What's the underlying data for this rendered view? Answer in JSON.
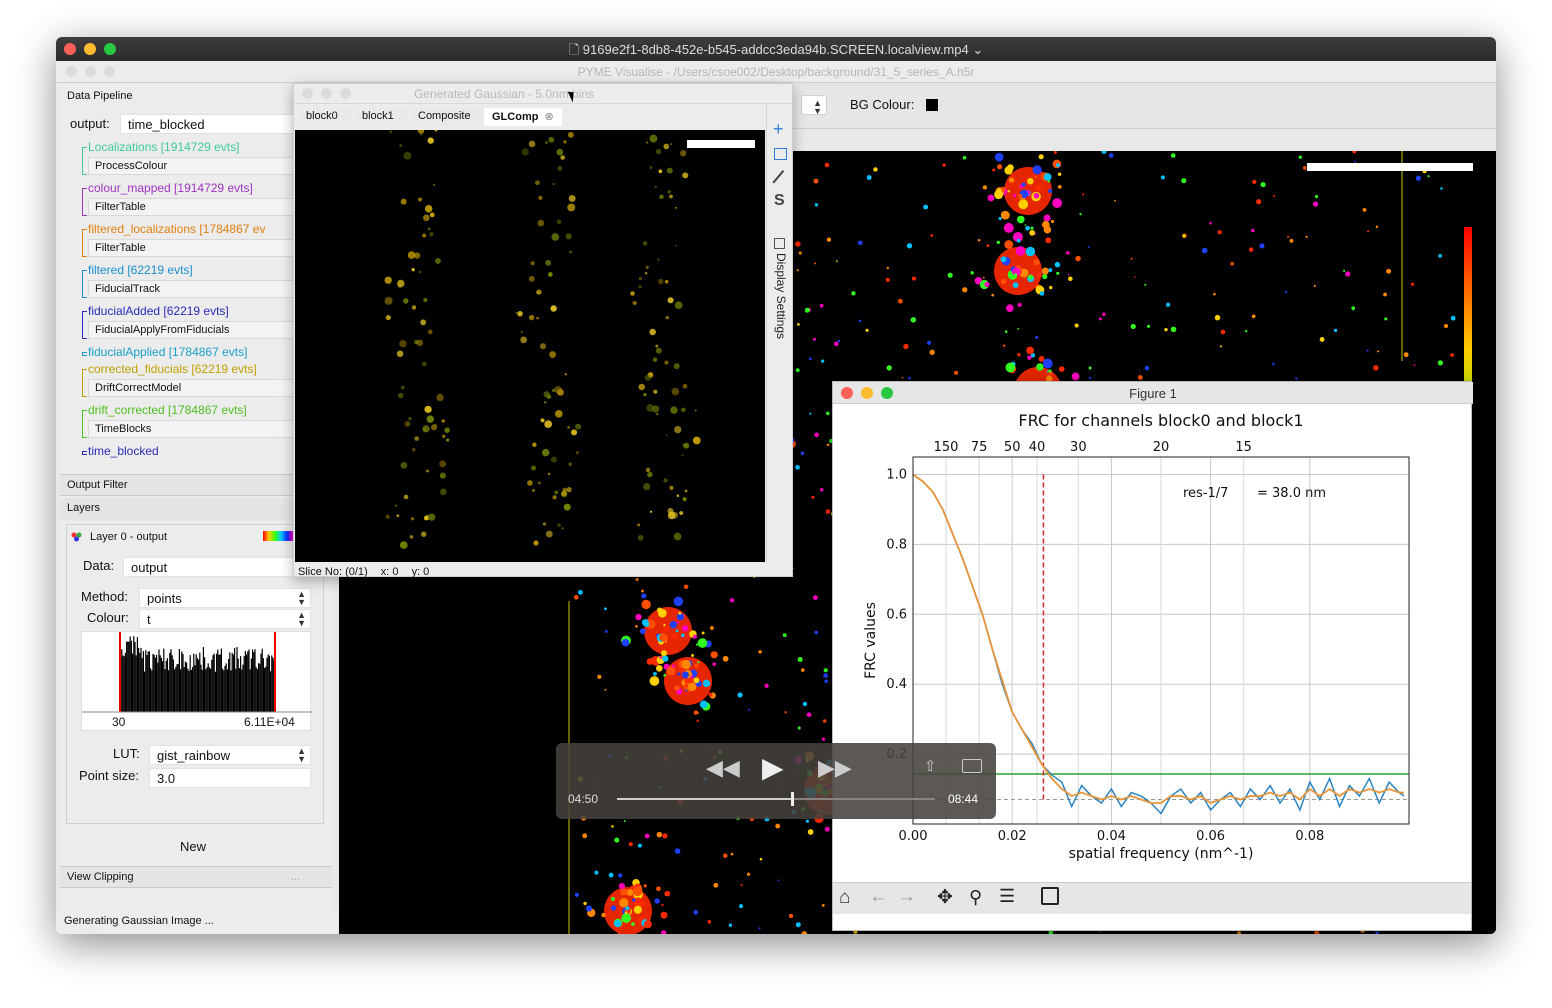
{
  "player": {
    "title": "9169e2f1-8db8-452e-b545-addcc3eda94b.SCREEN.localview.mp4",
    "title_chevron": "⌄",
    "controls": {
      "current_time": "04:50",
      "total_time": "08:44",
      "progress_fraction": 0.55
    }
  },
  "app": {
    "title": "PYME Visualise - /Users/csoe002/Desktop/background/31_5_series_A.h5r",
    "bg_colour_label": "BG Colour:"
  },
  "pipeline": {
    "header": "Data Pipeline",
    "output_label": "output:",
    "output_value": "time_blocked",
    "nodes": [
      {
        "label": "Localizations [1914729 evts]",
        "color": "#3fc9a0",
        "module": "ProcessColour"
      },
      {
        "label": "colour_mapped [1914729 evts]",
        "color": "#a035c0",
        "module": "FilterTable"
      },
      {
        "label": "filtered_localizations [1784867 ev",
        "color": "#e08010",
        "module": "FilterTable"
      },
      {
        "label": "filtered [62219 evts]",
        "color": "#1a8fd0",
        "module": "FiducialTrack"
      },
      {
        "label": "fiducialAdded [62219 evts]",
        "color": "#2a2ab8",
        "module": "FiducialApplyFromFiducials"
      },
      {
        "label": "fiducialApplied [1784867 evts]",
        "color": "#1aa0c8",
        "module": null
      },
      {
        "label": "corrected_fiducials [62219 evts]",
        "color": "#c0a000",
        "module": "DriftCorrectModel"
      },
      {
        "label": "drift_corrected [1784867 evts]",
        "color": "#50c020",
        "module": "TimeBlocks"
      },
      {
        "label": "time_blocked",
        "color": "#2a2ab8",
        "module": null
      }
    ]
  },
  "output_filter": {
    "header": "Output Filter"
  },
  "layers": {
    "header": "Layers",
    "layer_title": "Layer 0 - output",
    "data_label": "Data:",
    "data_value": "output",
    "method_label": "Method:",
    "method_value": "points",
    "colour_label": "Colour:",
    "colour_value": "t",
    "hist_min": "30",
    "hist_max": "6.11E+04",
    "lut_label": "LUT:",
    "lut_value": "gist_rainbow",
    "point_size_label": "Point size:",
    "point_size_value": "3.0",
    "new_button": "New"
  },
  "view_clipping": {
    "header": "View Clipping",
    "dots": "..."
  },
  "status_bar": "Generating Gaussian Image ...",
  "gauss_window": {
    "title": "Generated Gaussian - 5.0nm bins",
    "tabs": [
      "block0",
      "block1",
      "Composite",
      "GLComp"
    ],
    "active_tab": "GLComp",
    "status": {
      "slice": "Slice No: (0/1)",
      "x": "x: 0",
      "y": "y: 0"
    },
    "side_label": "Display Settings"
  },
  "figure": {
    "window_title": "Figure 1",
    "chart_data": {
      "type": "line",
      "title": "FRC for channels block0 and block1",
      "xlabel": "spatial frequency (nm^-1)",
      "ylabel": "FRC values",
      "xlim": [
        0.0,
        0.1
      ],
      "ylim": [
        0.0,
        1.05
      ],
      "x_ticks": [
        "0.00",
        "0.02",
        "0.04",
        "0.06",
        "0.08"
      ],
      "x_tick_values": [
        0.0,
        0.02,
        0.04,
        0.06,
        0.08
      ],
      "y_ticks": [
        "0.2",
        "0.4",
        "0.6",
        "0.8",
        "1.0"
      ],
      "y_tick_values": [
        0.2,
        0.4,
        0.6,
        0.8,
        1.0
      ],
      "top_axis_ticks": [
        "150",
        "75",
        "50",
        "40",
        "30",
        "20",
        "15"
      ],
      "top_axis_values": [
        150,
        75,
        50,
        40,
        30,
        20,
        15
      ],
      "threshold_y": 0.143,
      "resolution_x": 0.0263,
      "annotation_label": "res-1/7",
      "annotation_value": "= 38.0 nm",
      "series": [
        {
          "color": "#2b84c0",
          "x": [
            0.0,
            0.002,
            0.004,
            0.006,
            0.008,
            0.01,
            0.012,
            0.014,
            0.016,
            0.018,
            0.02,
            0.022,
            0.024,
            0.026,
            0.028,
            0.03,
            0.032,
            0.034,
            0.036,
            0.038,
            0.04,
            0.042,
            0.044,
            0.046,
            0.048,
            0.05,
            0.052,
            0.054,
            0.056,
            0.058,
            0.06,
            0.062,
            0.064,
            0.066,
            0.068,
            0.07,
            0.072,
            0.074,
            0.076,
            0.078,
            0.08,
            0.082,
            0.084,
            0.086,
            0.088,
            0.09,
            0.092,
            0.094,
            0.096,
            0.098,
            0.099
          ],
          "values": [
            1.0,
            0.98,
            0.95,
            0.9,
            0.83,
            0.76,
            0.68,
            0.6,
            0.5,
            0.4,
            0.32,
            0.27,
            0.23,
            0.17,
            0.14,
            0.12,
            0.05,
            0.11,
            0.08,
            0.06,
            0.1,
            0.05,
            0.09,
            0.08,
            0.06,
            0.03,
            0.08,
            0.1,
            0.06,
            0.09,
            0.04,
            0.07,
            0.09,
            0.05,
            0.1,
            0.07,
            0.11,
            0.06,
            0.1,
            0.04,
            0.12,
            0.07,
            0.13,
            0.05,
            0.11,
            0.08,
            0.13,
            0.06,
            0.12,
            0.09,
            0.08
          ]
        },
        {
          "color": "#e8943a",
          "x": [
            0.0,
            0.002,
            0.004,
            0.006,
            0.008,
            0.01,
            0.012,
            0.014,
            0.016,
            0.018,
            0.02,
            0.022,
            0.024,
            0.026,
            0.028,
            0.03,
            0.032,
            0.034,
            0.036,
            0.038,
            0.04,
            0.042,
            0.044,
            0.046,
            0.048,
            0.05,
            0.052,
            0.054,
            0.056,
            0.058,
            0.06,
            0.062,
            0.064,
            0.066,
            0.068,
            0.07,
            0.072,
            0.074,
            0.076,
            0.078,
            0.08,
            0.082,
            0.084,
            0.086,
            0.088,
            0.09,
            0.092,
            0.094,
            0.096,
            0.098,
            0.099
          ],
          "values": [
            1.0,
            0.98,
            0.95,
            0.9,
            0.83,
            0.76,
            0.68,
            0.6,
            0.5,
            0.41,
            0.32,
            0.27,
            0.22,
            0.17,
            0.13,
            0.1,
            0.08,
            0.09,
            0.08,
            0.07,
            0.08,
            0.07,
            0.08,
            0.07,
            0.06,
            0.06,
            0.08,
            0.08,
            0.07,
            0.08,
            0.06,
            0.07,
            0.08,
            0.07,
            0.08,
            0.08,
            0.09,
            0.08,
            0.09,
            0.07,
            0.1,
            0.08,
            0.1,
            0.08,
            0.1,
            0.09,
            0.1,
            0.09,
            0.1,
            0.09,
            0.09
          ]
        }
      ],
      "grid": true
    }
  },
  "colors": {
    "threshold": "#2ca02c",
    "resolution_line": "#d62728",
    "grey_line": "#999999"
  }
}
